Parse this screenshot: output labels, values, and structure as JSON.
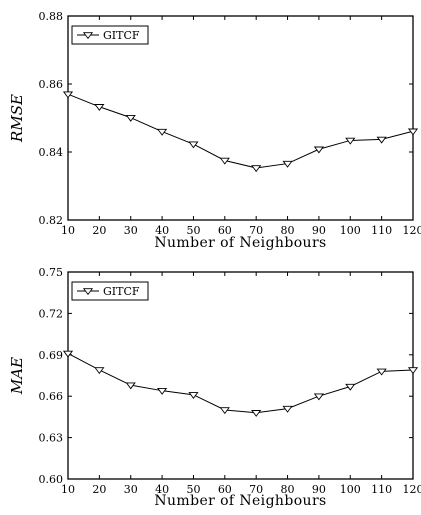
{
  "chart_data": [
    {
      "type": "line",
      "xlabel": "Number  of  Neighbours",
      "ylabel": "RMSE",
      "xlim": [
        10,
        120
      ],
      "ylim": [
        0.82,
        0.88
      ],
      "x_ticks": [
        10,
        20,
        30,
        40,
        50,
        60,
        70,
        80,
        90,
        100,
        110,
        120
      ],
      "y_ticks": [
        "0.82",
        "0.84",
        "0.86",
        "0.88"
      ],
      "legend_position": "top-left",
      "grid": false,
      "series": [
        {
          "name": "GITCF",
          "marker": "down-triangle",
          "x": [
            10,
            20,
            30,
            40,
            50,
            60,
            70,
            80,
            90,
            100,
            110,
            120
          ],
          "y": [
            0.857,
            0.8533,
            0.8501,
            0.846,
            0.8423,
            0.8375,
            0.8353,
            0.8366,
            0.8408,
            0.8434,
            0.8437,
            0.8461
          ]
        }
      ]
    },
    {
      "type": "line",
      "xlabel": "Number  of  Neighbours",
      "ylabel": "MAE",
      "xlim": [
        10,
        120
      ],
      "ylim": [
        0.6,
        0.75
      ],
      "x_ticks": [
        10,
        20,
        30,
        40,
        50,
        60,
        70,
        80,
        90,
        100,
        110,
        120
      ],
      "y_ticks": [
        "0.60",
        "0.63",
        "0.66",
        "0.69",
        "0.72",
        "0.75"
      ],
      "legend_position": "top-left",
      "grid": false,
      "series": [
        {
          "name": "GITCF",
          "marker": "down-triangle",
          "x": [
            10,
            20,
            30,
            40,
            50,
            60,
            70,
            80,
            90,
            100,
            110,
            120
          ],
          "y": [
            0.691,
            0.679,
            0.668,
            0.664,
            0.661,
            0.65,
            0.648,
            0.651,
            0.66,
            0.667,
            0.678,
            0.679
          ]
        }
      ]
    }
  ]
}
